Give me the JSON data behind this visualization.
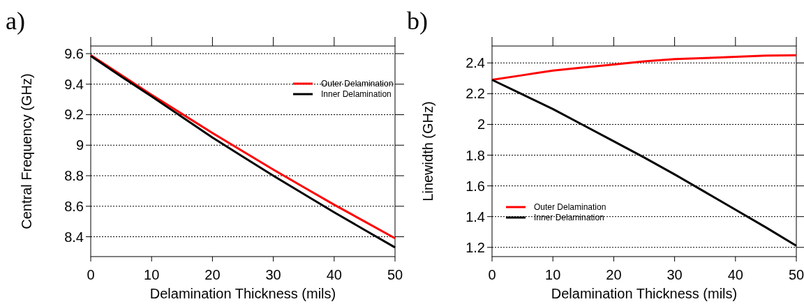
{
  "chart_data": [
    {
      "type": "line",
      "title": "a)",
      "xlabel": "Delamination Thickness (mils)",
      "ylabel": "Central Frequency (GHz)",
      "x": [
        0,
        5,
        10,
        15,
        20,
        25,
        30,
        35,
        40,
        45,
        50
      ],
      "series": [
        {
          "name": "Outer Delamination",
          "color": "#ff0000",
          "values": [
            9.59,
            9.46,
            9.33,
            9.205,
            9.08,
            8.96,
            8.84,
            8.725,
            8.61,
            8.5,
            8.39
          ]
        },
        {
          "name": "Inner Delamination",
          "color": "#000000",
          "values": [
            9.585,
            9.45,
            9.32,
            9.185,
            9.05,
            8.925,
            8.8,
            8.68,
            8.56,
            8.445,
            8.33
          ]
        }
      ],
      "xlim": [
        0,
        50
      ],
      "xticks": [
        0,
        10,
        20,
        30,
        40,
        50
      ],
      "ylim": [
        8.27,
        9.65
      ],
      "yticks": [
        8.4,
        8.6,
        8.8,
        9,
        9.2,
        9.4,
        9.6
      ],
      "grid": "y",
      "legend": "top right",
      "line_style": "solid",
      "marker": "none"
    },
    {
      "type": "line",
      "title": "b)",
      "xlabel": "Delamination Thickness (mils)",
      "ylabel": "Linewidth (GHz)",
      "x": [
        0,
        5,
        10,
        15,
        20,
        25,
        30,
        35,
        40,
        45,
        50
      ],
      "series": [
        {
          "name": "Outer Delamination",
          "color": "#ff0000",
          "values": [
            2.29,
            2.32,
            2.35,
            2.37,
            2.39,
            2.41,
            2.425,
            2.432,
            2.44,
            2.448,
            2.45
          ]
        },
        {
          "name": "Inner Delamination",
          "color": "#000000",
          "values": [
            2.29,
            2.195,
            2.1,
            1.995,
            1.89,
            1.785,
            1.675,
            1.56,
            1.445,
            1.33,
            1.21
          ]
        }
      ],
      "xlim": [
        0,
        50
      ],
      "xticks": [
        0,
        10,
        20,
        30,
        40,
        50
      ],
      "ylim": [
        1.14,
        2.51
      ],
      "yticks": [
        1.2,
        1.4,
        1.6,
        1.8,
        2,
        2.2,
        2.4
      ],
      "grid": "y",
      "legend": "bottom left",
      "line_style": "solid",
      "marker": "none"
    }
  ]
}
